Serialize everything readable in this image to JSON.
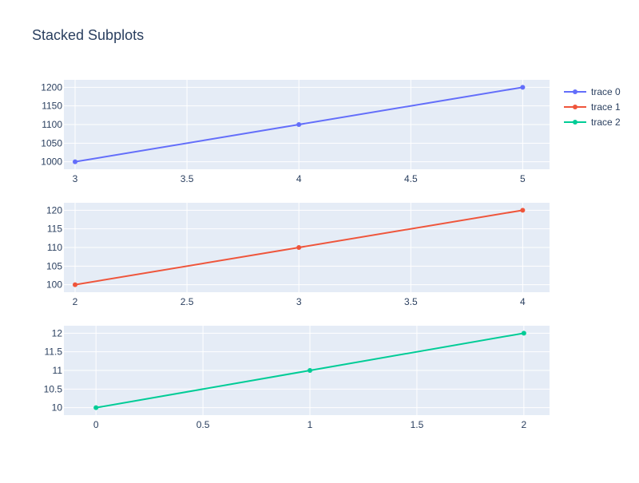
{
  "title": "Stacked Subplots",
  "chart_data": [
    {
      "type": "line",
      "series": [
        {
          "name": "trace 0",
          "x": [
            3,
            4,
            5
          ],
          "y": [
            1000,
            1100,
            1200
          ],
          "color": "#636efa"
        }
      ],
      "xlim": [
        2.95,
        5.12
      ],
      "ylim": [
        980,
        1220
      ],
      "x_ticks": [
        3,
        3.5,
        4,
        4.5,
        5
      ],
      "y_ticks": [
        1000,
        1050,
        1100,
        1150,
        1200
      ],
      "x_tick_labels": [
        "3",
        "3.5",
        "4",
        "4.5",
        "5"
      ],
      "y_tick_labels": [
        "1000",
        "1050",
        "1100",
        "1150",
        "1200"
      ],
      "grid": true
    },
    {
      "type": "line",
      "series": [
        {
          "name": "trace 1",
          "x": [
            2,
            3,
            4
          ],
          "y": [
            100,
            110,
            120
          ],
          "color": "#ef553b"
        }
      ],
      "xlim": [
        1.95,
        4.12
      ],
      "ylim": [
        98,
        122
      ],
      "x_ticks": [
        2,
        2.5,
        3,
        3.5,
        4
      ],
      "y_ticks": [
        100,
        105,
        110,
        115,
        120
      ],
      "x_tick_labels": [
        "2",
        "2.5",
        "3",
        "3.5",
        "4"
      ],
      "y_tick_labels": [
        "100",
        "105",
        "110",
        "115",
        "120"
      ],
      "grid": true
    },
    {
      "type": "line",
      "series": [
        {
          "name": "trace 2",
          "x": [
            0,
            1,
            2
          ],
          "y": [
            10,
            11,
            12
          ],
          "color": "#00cc96"
        }
      ],
      "xlim": [
        -0.15,
        2.12
      ],
      "ylim": [
        9.8,
        12.2
      ],
      "x_ticks": [
        0,
        0.5,
        1,
        1.5,
        2
      ],
      "y_ticks": [
        10,
        10.5,
        11,
        11.5,
        12
      ],
      "x_tick_labels": [
        "0",
        "0.5",
        "1",
        "1.5",
        "2"
      ],
      "y_tick_labels": [
        "10",
        "10.5",
        "11",
        "11.5",
        "12"
      ],
      "grid": true
    }
  ],
  "legend": {
    "placement": "top-right",
    "items": [
      {
        "name": "trace 0",
        "color": "#636efa"
      },
      {
        "name": "trace 1",
        "color": "#ef553b"
      },
      {
        "name": "trace 2",
        "color": "#00cc96"
      }
    ]
  },
  "colors": {
    "plot_background": "#e5ecf6",
    "grid": "#ffffff",
    "text": "#2a3f5f"
  }
}
